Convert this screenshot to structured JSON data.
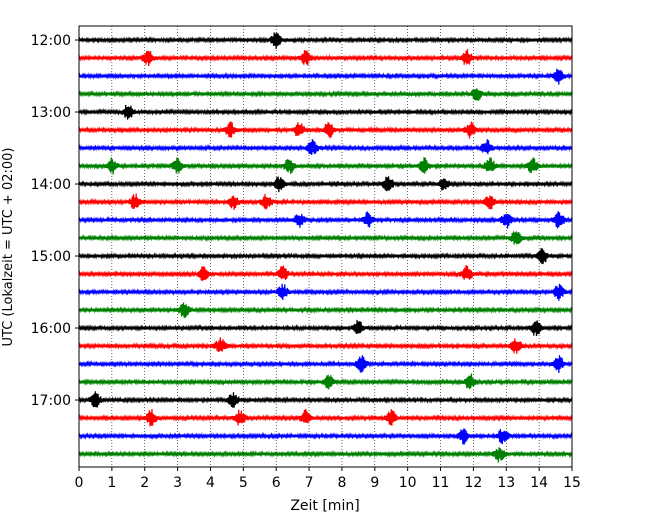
{
  "chart_data": {
    "type": "line",
    "title": "",
    "xlabel": "Zeit  [min]",
    "ylabel": "UTC (Lokalzeit = UTC + 02:00)",
    "xlim": [
      0,
      15
    ],
    "x_ticks": [
      "0",
      "1",
      "2",
      "3",
      "4",
      "5",
      "6",
      "7",
      "8",
      "9",
      "10",
      "11",
      "12",
      "13",
      "14",
      "15"
    ],
    "y_ticks": [
      "12:00",
      "13:00",
      "14:00",
      "15:00",
      "16:00",
      "17:00"
    ],
    "grid": "vertical dotted",
    "trace_interval_minutes": 15,
    "color_cycle": [
      "#000000",
      "#ff0000",
      "#0000ff",
      "#008000"
    ],
    "series": [
      {
        "start": "12:00",
        "events_min": [
          6.0
        ]
      },
      {
        "start": "12:15",
        "events_min": [
          2.1,
          6.9,
          11.8
        ]
      },
      {
        "start": "12:30",
        "events_min": [
          14.6
        ]
      },
      {
        "start": "12:45",
        "events_min": [
          12.1
        ]
      },
      {
        "start": "13:00",
        "events_min": [
          1.5
        ]
      },
      {
        "start": "13:15",
        "events_min": [
          4.6,
          6.7,
          7.6,
          11.9
        ]
      },
      {
        "start": "13:30",
        "events_min": [
          7.1,
          12.4
        ]
      },
      {
        "start": "13:45",
        "events_min": [
          1.0,
          3.0,
          6.4,
          10.5,
          12.5,
          13.8
        ]
      },
      {
        "start": "14:00",
        "events_min": [
          6.1,
          9.4,
          11.1
        ]
      },
      {
        "start": "14:15",
        "events_min": [
          1.7,
          4.7,
          5.7,
          12.5
        ]
      },
      {
        "start": "14:30",
        "events_min": [
          6.7,
          8.8,
          13.0,
          14.6
        ]
      },
      {
        "start": "14:45",
        "events_min": [
          13.3
        ]
      },
      {
        "start": "15:00",
        "events_min": [
          14.1
        ]
      },
      {
        "start": "15:15",
        "events_min": [
          3.8,
          6.2,
          11.8
        ]
      },
      {
        "start": "15:30",
        "events_min": [
          6.2,
          14.6
        ]
      },
      {
        "start": "15:45",
        "events_min": [
          3.2
        ]
      },
      {
        "start": "16:00",
        "events_min": [
          8.5,
          13.9
        ]
      },
      {
        "start": "16:15",
        "events_min": [
          4.3,
          13.3
        ]
      },
      {
        "start": "16:30",
        "events_min": [
          8.6,
          14.6
        ]
      },
      {
        "start": "16:45",
        "events_min": [
          7.6,
          11.9
        ]
      },
      {
        "start": "17:00",
        "events_min": [
          0.5,
          4.7
        ]
      },
      {
        "start": "17:15",
        "events_min": [
          2.2,
          4.9,
          6.9,
          9.5
        ]
      },
      {
        "start": "17:30",
        "events_min": [
          11.7,
          12.9
        ]
      },
      {
        "start": "17:45",
        "events_min": [
          12.8
        ]
      }
    ]
  }
}
